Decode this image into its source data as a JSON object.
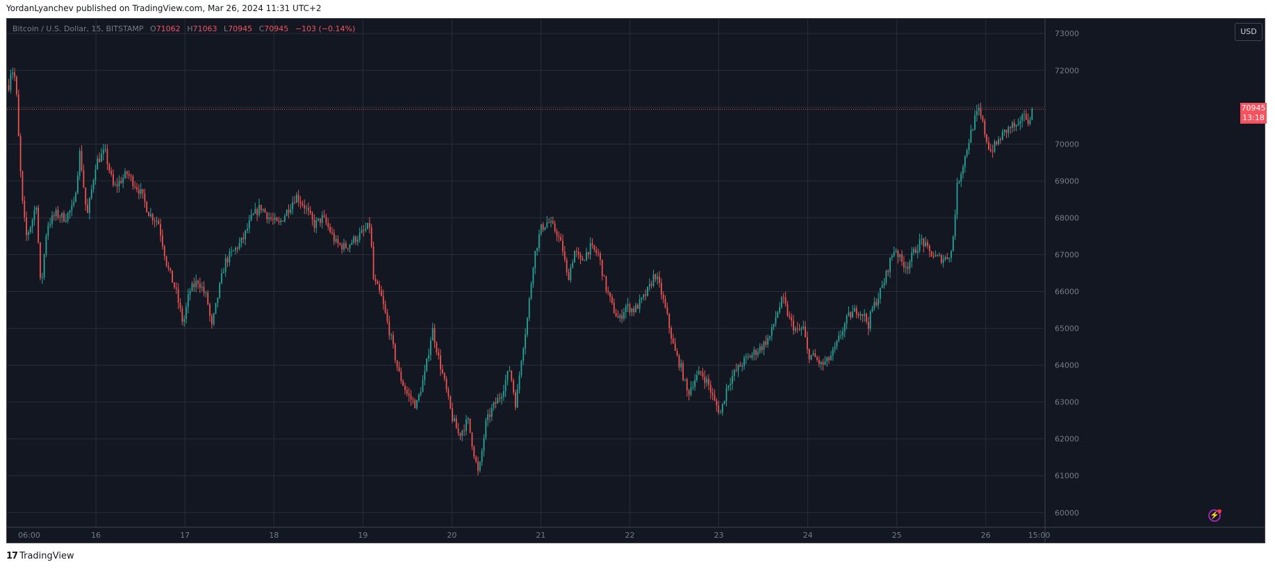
{
  "header": {
    "caption": "YordanLyanchev published on TradingView.com, Mar 26, 2024 11:31 UTC+2"
  },
  "legend": {
    "symbol": "Bitcoin / U.S. Dollar, 15, BITSTAMP",
    "open_label": "O",
    "open": "71062",
    "high_label": "H",
    "high": "71063",
    "low_label": "L",
    "low": "70945",
    "close_label": "C",
    "close": "70945",
    "change": "−103 (−0.14%)"
  },
  "toolbar": {
    "currency_button": "USD"
  },
  "last_price": {
    "value": "70945",
    "countdown": "13:18"
  },
  "colors": {
    "background": "#131722",
    "up": "#26a69a",
    "down": "#ef5350",
    "grid": "#2a2e39",
    "axis_text": "#787b86",
    "last_price": "#f7525f"
  },
  "icons": {
    "alert": "lightning-icon",
    "brand": "tradingview-logo"
  },
  "footer": {
    "brand": "TradingView"
  },
  "chart_data": {
    "type": "candlestick",
    "title": "Bitcoin / U.S. Dollar, 15, BITSTAMP",
    "y_ticks": [
      60000,
      61000,
      62000,
      63000,
      64000,
      65000,
      66000,
      67000,
      68000,
      69000,
      70000,
      71000,
      72000,
      73000
    ],
    "y_tick_labels": [
      "60000",
      "61000",
      "62000",
      "63000",
      "64000",
      "65000",
      "66000",
      "67000",
      "68000",
      "69000",
      "70000",
      "",
      "72000",
      "73000"
    ],
    "ylim": [
      59600,
      73400
    ],
    "x_ticks": [
      "06:00",
      "16",
      "17",
      "18",
      "19",
      "20",
      "21",
      "22",
      "23",
      "24",
      "25",
      "26",
      "15:00"
    ],
    "x_tick_positions": [
      0.25,
      1,
      2,
      3,
      4,
      5,
      6,
      7,
      8,
      9,
      10,
      11,
      11.6
    ],
    "xlim": [
      0.0,
      11.65
    ],
    "last_price": 70945,
    "price_path": [
      [
        0.02,
        71600
      ],
      [
        0.05,
        72100
      ],
      [
        0.1,
        71700
      ],
      [
        0.14,
        69700
      ],
      [
        0.18,
        68200
      ],
      [
        0.22,
        67500
      ],
      [
        0.28,
        67900
      ],
      [
        0.33,
        68400
      ],
      [
        0.38,
        66000
      ],
      [
        0.45,
        67800
      ],
      [
        0.55,
        68100
      ],
      [
        0.65,
        68000
      ],
      [
        0.75,
        68300
      ],
      [
        0.82,
        69800
      ],
      [
        0.9,
        68000
      ],
      [
        1.0,
        69500
      ],
      [
        1.1,
        69800
      ],
      [
        1.2,
        68800
      ],
      [
        1.35,
        69200
      ],
      [
        1.5,
        68700
      ],
      [
        1.6,
        68100
      ],
      [
        1.7,
        67900
      ],
      [
        1.8,
        66700
      ],
      [
        1.9,
        66000
      ],
      [
        1.98,
        65100
      ],
      [
        2.05,
        66000
      ],
      [
        2.15,
        66300
      ],
      [
        2.25,
        65800
      ],
      [
        2.3,
        65000
      ],
      [
        2.38,
        66000
      ],
      [
        2.45,
        66800
      ],
      [
        2.55,
        67100
      ],
      [
        2.65,
        67400
      ],
      [
        2.75,
        68000
      ],
      [
        2.85,
        68300
      ],
      [
        2.95,
        68000
      ],
      [
        3.05,
        67800
      ],
      [
        3.15,
        68200
      ],
      [
        3.25,
        68600
      ],
      [
        3.35,
        68300
      ],
      [
        3.45,
        67800
      ],
      [
        3.55,
        68000
      ],
      [
        3.62,
        67700
      ],
      [
        3.7,
        67300
      ],
      [
        3.8,
        67200
      ],
      [
        3.9,
        67400
      ],
      [
        4.0,
        67600
      ],
      [
        4.08,
        67800
      ],
      [
        4.12,
        66300
      ],
      [
        4.2,
        65900
      ],
      [
        4.3,
        64900
      ],
      [
        4.4,
        63800
      ],
      [
        4.5,
        63200
      ],
      [
        4.6,
        62900
      ],
      [
        4.7,
        63800
      ],
      [
        4.78,
        65000
      ],
      [
        4.85,
        64200
      ],
      [
        4.92,
        63500
      ],
      [
        5.0,
        62600
      ],
      [
        5.08,
        62100
      ],
      [
        5.18,
        62500
      ],
      [
        5.25,
        61600
      ],
      [
        5.3,
        61000
      ],
      [
        5.38,
        62400
      ],
      [
        5.45,
        62800
      ],
      [
        5.55,
        63200
      ],
      [
        5.65,
        63900
      ],
      [
        5.72,
        62900
      ],
      [
        5.78,
        64200
      ],
      [
        5.85,
        65300
      ],
      [
        5.92,
        66900
      ],
      [
        6.0,
        67700
      ],
      [
        6.08,
        67900
      ],
      [
        6.18,
        67600
      ],
      [
        6.25,
        67100
      ],
      [
        6.3,
        66300
      ],
      [
        6.38,
        67100
      ],
      [
        6.45,
        66800
      ],
      [
        6.55,
        67200
      ],
      [
        6.65,
        67000
      ],
      [
        6.72,
        66200
      ],
      [
        6.8,
        65600
      ],
      [
        6.88,
        65200
      ],
      [
        6.95,
        65600
      ],
      [
        7.05,
        65500
      ],
      [
        7.15,
        65800
      ],
      [
        7.22,
        66100
      ],
      [
        7.28,
        66500
      ],
      [
        7.35,
        66000
      ],
      [
        7.42,
        65300
      ],
      [
        7.5,
        64400
      ],
      [
        7.58,
        63900
      ],
      [
        7.65,
        63200
      ],
      [
        7.72,
        63600
      ],
      [
        7.8,
        63800
      ],
      [
        7.88,
        63500
      ],
      [
        7.95,
        63000
      ],
      [
        8.02,
        62700
      ],
      [
        8.1,
        63500
      ],
      [
        8.18,
        63800
      ],
      [
        8.28,
        64100
      ],
      [
        8.38,
        64300
      ],
      [
        8.48,
        64500
      ],
      [
        8.58,
        64800
      ],
      [
        8.65,
        65400
      ],
      [
        8.72,
        65800
      ],
      [
        8.8,
        65200
      ],
      [
        8.88,
        64900
      ],
      [
        8.95,
        65000
      ],
      [
        9.0,
        64300
      ],
      [
        9.08,
        64200
      ],
      [
        9.15,
        64000
      ],
      [
        9.22,
        64100
      ],
      [
        9.3,
        64400
      ],
      [
        9.38,
        64900
      ],
      [
        9.45,
        65300
      ],
      [
        9.55,
        65500
      ],
      [
        9.62,
        65400
      ],
      [
        9.68,
        65100
      ],
      [
        9.72,
        65500
      ],
      [
        9.78,
        65800
      ],
      [
        9.85,
        66200
      ],
      [
        9.92,
        66800
      ],
      [
        9.98,
        67200
      ],
      [
        10.05,
        66800
      ],
      [
        10.12,
        66700
      ],
      [
        10.2,
        67100
      ],
      [
        10.28,
        67400
      ],
      [
        10.35,
        67100
      ],
      [
        10.45,
        66900
      ],
      [
        10.55,
        66900
      ],
      [
        10.62,
        67100
      ],
      [
        10.68,
        68900
      ],
      [
        10.75,
        69500
      ],
      [
        10.82,
        70200
      ],
      [
        10.88,
        70700
      ],
      [
        10.92,
        70900
      ],
      [
        10.96,
        70600
      ],
      [
        11.0,
        70200
      ],
      [
        11.05,
        69800
      ],
      [
        11.12,
        70000
      ],
      [
        11.2,
        70300
      ],
      [
        11.3,
        70500
      ],
      [
        11.38,
        70400
      ],
      [
        11.42,
        71000
      ],
      [
        11.46,
        70500
      ],
      [
        11.5,
        70800
      ],
      [
        11.52,
        70945
      ]
    ]
  }
}
